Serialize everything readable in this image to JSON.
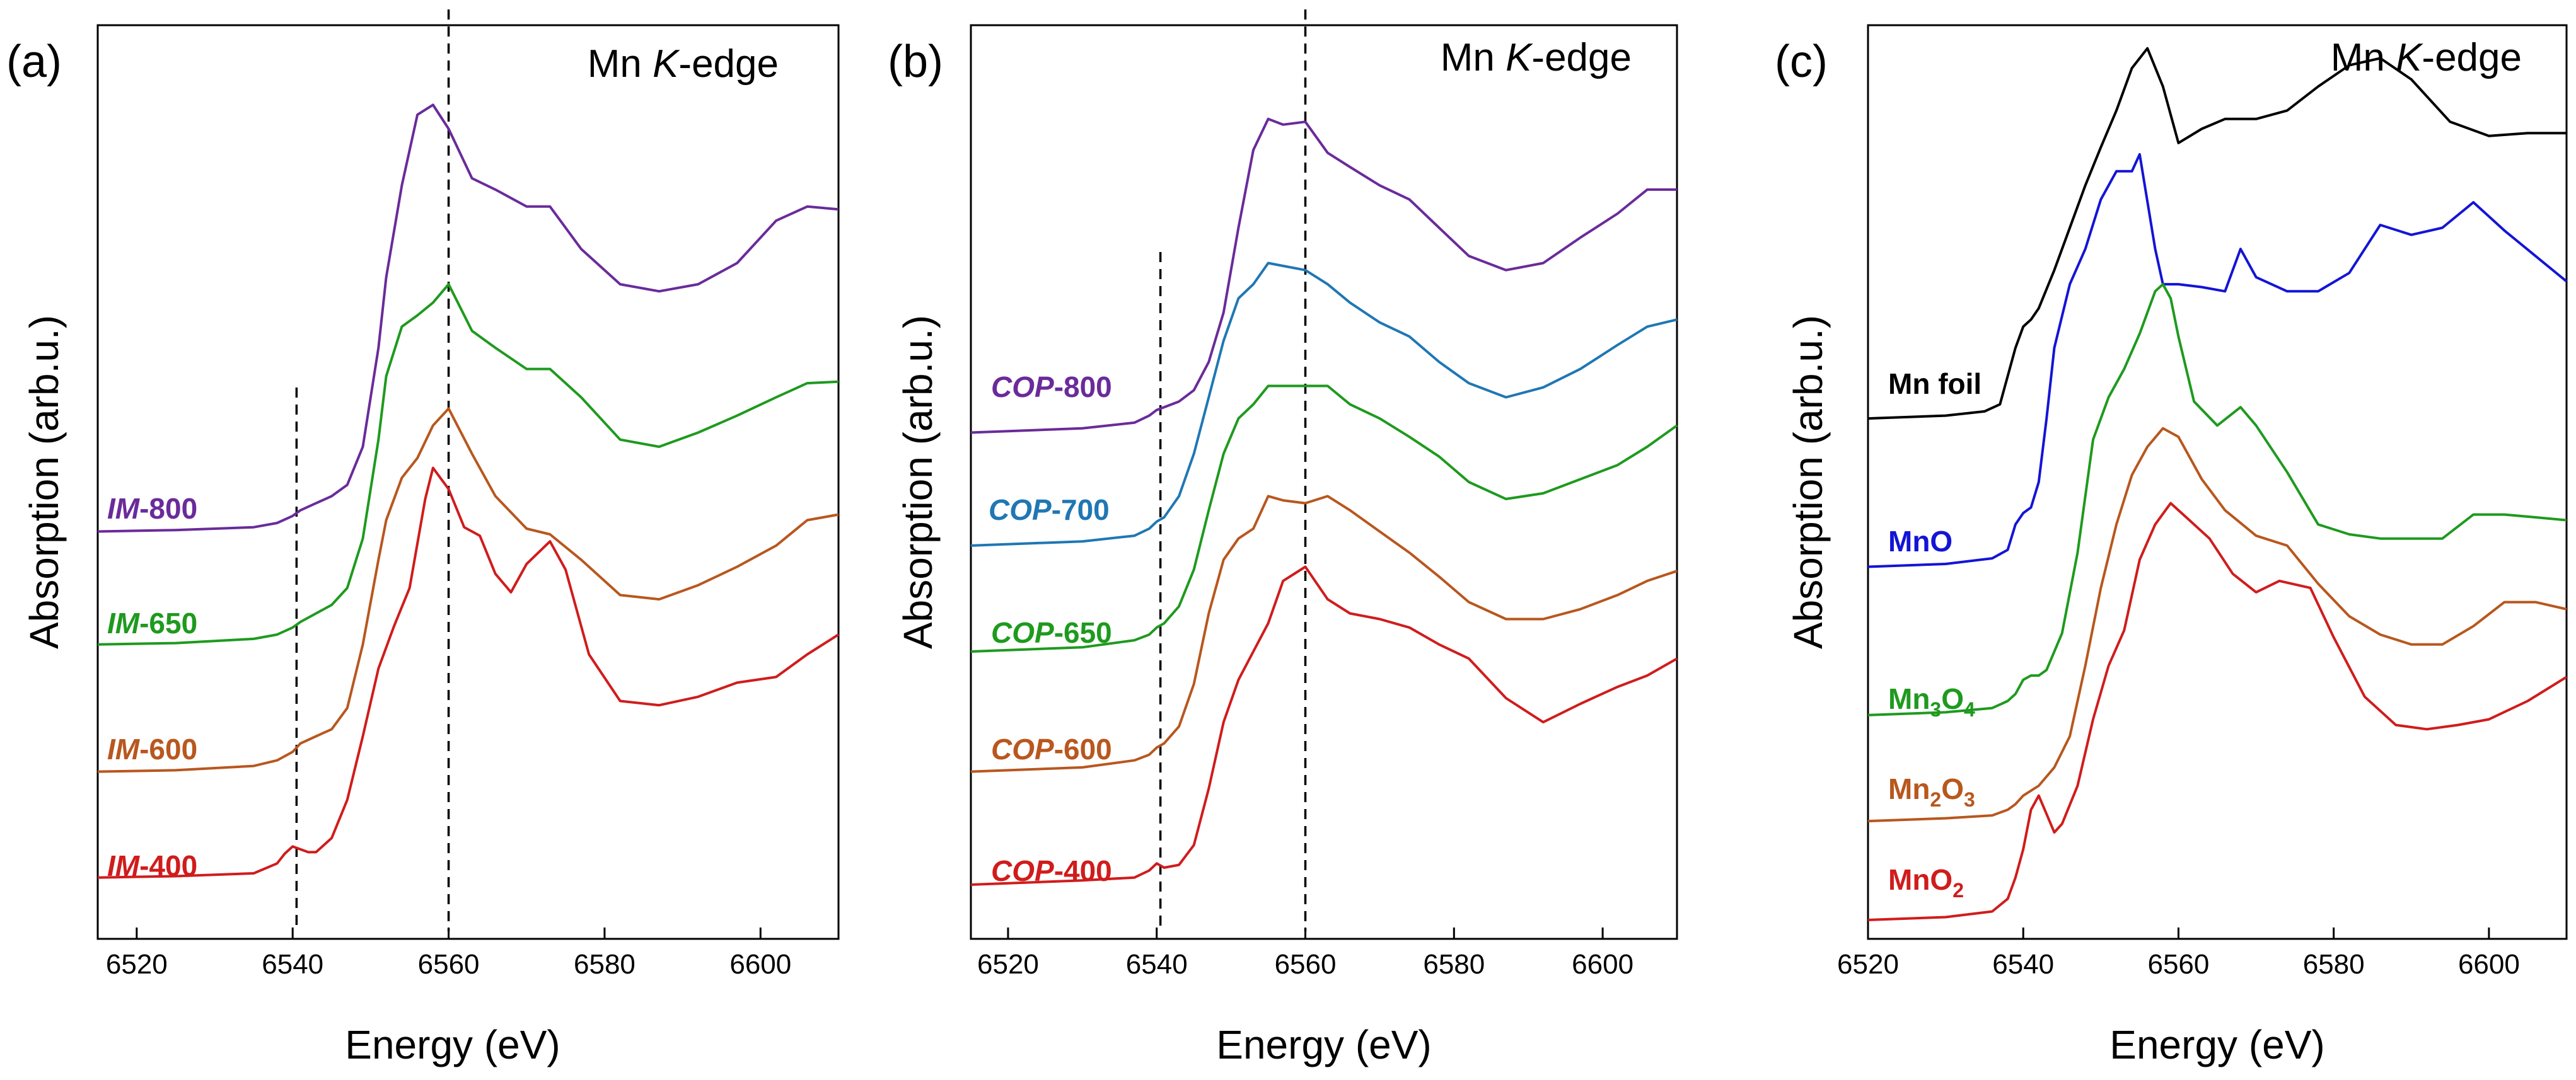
{
  "figure": {
    "x_axis_label": "Energy (eV)",
    "y_axis_label": "Absorption (arb.u.)",
    "edge_label_prefix": "Mn ",
    "edge_label_italic": "K",
    "edge_label_suffix": "-edge"
  },
  "chart_data": [
    {
      "type": "line",
      "panel_label": "(a)",
      "title": "Mn K-edge",
      "xlabel": "Energy (eV)",
      "ylabel": "Absorption (arb.u.)",
      "xlim": [
        6515,
        6610
      ],
      "ylim": [
        0,
        6.2
      ],
      "xticks": [
        6520,
        6540,
        6560,
        6580,
        6600
      ],
      "yticks_visible": false,
      "reference_lines": [
        6540.5,
        6560
      ],
      "series": [
        {
          "name": "IM-800",
          "label_italic": "IM",
          "label_suffix": "-800",
          "color": "#6a2b9a",
          "offset": 2.75,
          "x": [
            6515,
            6525,
            6535,
            6538,
            6540,
            6541,
            6543,
            6545,
            6547,
            6549,
            6551,
            6552,
            6554,
            6556,
            6558,
            6560,
            6563,
            6566,
            6570,
            6573,
            6577,
            6582,
            6587,
            6592,
            6597,
            6602,
            6606,
            6610
          ],
          "y": [
            0,
            0.01,
            0.03,
            0.06,
            0.11,
            0.15,
            0.2,
            0.25,
            0.33,
            0.6,
            1.3,
            1.8,
            2.45,
            2.95,
            3.02,
            2.85,
            2.5,
            2.42,
            2.3,
            2.3,
            2.0,
            1.75,
            1.7,
            1.75,
            1.9,
            2.2,
            2.3,
            2.28
          ]
        },
        {
          "name": "IM-650",
          "label_italic": "IM",
          "label_suffix": "-650",
          "color": "#1e9a1e",
          "offset": 1.95,
          "x": [
            6515,
            6525,
            6535,
            6538,
            6540,
            6541,
            6543,
            6545,
            6547,
            6549,
            6551,
            6552,
            6554,
            6556,
            6558,
            6560,
            6563,
            6566,
            6570,
            6573,
            6577,
            6582,
            6587,
            6592,
            6597,
            6602,
            6606,
            6610
          ],
          "y": [
            0,
            0.01,
            0.04,
            0.07,
            0.12,
            0.16,
            0.22,
            0.28,
            0.4,
            0.75,
            1.45,
            1.9,
            2.25,
            2.33,
            2.42,
            2.55,
            2.22,
            2.1,
            1.95,
            1.95,
            1.75,
            1.45,
            1.4,
            1.5,
            1.62,
            1.75,
            1.85,
            1.86
          ]
        },
        {
          "name": "IM-600",
          "label_italic": "IM",
          "label_suffix": "-600",
          "color": "#b8571e",
          "offset": 1.05,
          "x": [
            6515,
            6525,
            6535,
            6538,
            6540,
            6541,
            6543,
            6545,
            6547,
            6549,
            6551,
            6552,
            6554,
            6556,
            6558,
            6560,
            6563,
            6566,
            6570,
            6573,
            6577,
            6582,
            6587,
            6592,
            6597,
            6602,
            6606,
            6610
          ],
          "y": [
            0,
            0.01,
            0.04,
            0.08,
            0.14,
            0.2,
            0.25,
            0.3,
            0.45,
            0.9,
            1.5,
            1.78,
            2.08,
            2.22,
            2.45,
            2.57,
            2.25,
            1.95,
            1.72,
            1.68,
            1.5,
            1.25,
            1.22,
            1.32,
            1.45,
            1.6,
            1.78,
            1.82
          ]
        },
        {
          "name": "IM-400",
          "label_italic": "IM",
          "label_suffix": "-400",
          "color": "#d01c1c",
          "offset": 0.3,
          "x": [
            6515,
            6525,
            6535,
            6538,
            6539,
            6540,
            6541,
            6542,
            6543,
            6545,
            6547,
            6549,
            6551,
            6553,
            6555,
            6557,
            6558,
            6560,
            6562,
            6564,
            6566,
            6568,
            6570,
            6573,
            6575,
            6578,
            6582,
            6587,
            6592,
            6597,
            6602,
            6606,
            6610
          ],
          "y": [
            0,
            0.01,
            0.03,
            0.1,
            0.17,
            0.22,
            0.2,
            0.18,
            0.18,
            0.28,
            0.55,
            1.0,
            1.48,
            1.78,
            2.05,
            2.68,
            2.9,
            2.75,
            2.48,
            2.42,
            2.15,
            2.02,
            2.22,
            2.38,
            2.18,
            1.58,
            1.25,
            1.22,
            1.28,
            1.38,
            1.42,
            1.58,
            1.72
          ]
        }
      ]
    },
    {
      "type": "line",
      "panel_label": "(b)",
      "title": "Mn K-edge",
      "xlabel": "Energy (eV)",
      "ylabel": "Absorption (arb.u.)",
      "xlim": [
        6515,
        6610
      ],
      "ylim": [
        0,
        6.2
      ],
      "xticks": [
        6520,
        6540,
        6560,
        6580,
        6600
      ],
      "yticks_visible": false,
      "reference_lines": [
        6540.5,
        6560
      ],
      "series": [
        {
          "name": "COP-800",
          "label_italic": "COP",
          "label_suffix": "-800",
          "color": "#6a2b9a",
          "offset": 3.45,
          "x": [
            6515,
            6530,
            6537,
            6539,
            6540,
            6541,
            6543,
            6545,
            6547,
            6549,
            6551,
            6553,
            6555,
            6557,
            6560,
            6563,
            6566,
            6570,
            6574,
            6578,
            6582,
            6587,
            6592,
            6597,
            6602,
            6606,
            6610
          ],
          "y": [
            0,
            0.03,
            0.07,
            0.12,
            0.16,
            0.18,
            0.22,
            0.3,
            0.5,
            0.85,
            1.45,
            2.0,
            2.22,
            2.18,
            2.2,
            1.98,
            1.88,
            1.75,
            1.65,
            1.45,
            1.25,
            1.15,
            1.2,
            1.38,
            1.55,
            1.72,
            1.72
          ]
        },
        {
          "name": "COP-700",
          "label_italic": "COP",
          "label_suffix": "-700",
          "color": "#1f77b4",
          "offset": 2.65,
          "x": [
            6515,
            6530,
            6537,
            6539,
            6540,
            6541,
            6543,
            6545,
            6547,
            6549,
            6551,
            6553,
            6555,
            6557,
            6560,
            6563,
            6566,
            6570,
            6574,
            6578,
            6582,
            6587,
            6592,
            6597,
            6602,
            6606,
            6610
          ],
          "y": [
            0,
            0.03,
            0.07,
            0.12,
            0.17,
            0.2,
            0.35,
            0.65,
            1.05,
            1.45,
            1.75,
            1.85,
            2.0,
            1.98,
            1.95,
            1.85,
            1.72,
            1.58,
            1.48,
            1.3,
            1.15,
            1.05,
            1.12,
            1.25,
            1.42,
            1.55,
            1.6
          ]
        },
        {
          "name": "COP-650",
          "label_italic": "COP",
          "label_suffix": "-650",
          "color": "#1e9a1e",
          "offset": 1.9,
          "x": [
            6515,
            6530,
            6537,
            6539,
            6540,
            6541,
            6543,
            6545,
            6547,
            6549,
            6551,
            6553,
            6555,
            6557,
            6560,
            6563,
            6566,
            6570,
            6574,
            6578,
            6582,
            6587,
            6592,
            6597,
            6602,
            6606,
            6610
          ],
          "y": [
            0,
            0.03,
            0.08,
            0.12,
            0.17,
            0.2,
            0.32,
            0.58,
            1.0,
            1.4,
            1.65,
            1.75,
            1.88,
            1.88,
            1.88,
            1.88,
            1.75,
            1.65,
            1.52,
            1.38,
            1.2,
            1.08,
            1.12,
            1.22,
            1.32,
            1.45,
            1.6
          ]
        },
        {
          "name": "COP-600",
          "label_italic": "COP",
          "label_suffix": "-600",
          "color": "#b8571e",
          "offset": 1.05,
          "x": [
            6515,
            6530,
            6537,
            6539,
            6540,
            6541,
            6543,
            6545,
            6547,
            6549,
            6551,
            6553,
            6555,
            6557,
            6560,
            6563,
            6566,
            6570,
            6574,
            6578,
            6582,
            6587,
            6592,
            6597,
            6602,
            6606,
            6610
          ],
          "y": [
            0,
            0.03,
            0.08,
            0.12,
            0.17,
            0.2,
            0.32,
            0.62,
            1.12,
            1.5,
            1.65,
            1.72,
            1.95,
            1.92,
            1.9,
            1.95,
            1.85,
            1.7,
            1.55,
            1.38,
            1.2,
            1.08,
            1.08,
            1.15,
            1.25,
            1.35,
            1.42
          ]
        },
        {
          "name": "COP-400",
          "label_italic": "COP",
          "label_suffix": "-400",
          "color": "#d01c1c",
          "offset": 0.25,
          "x": [
            6515,
            6530,
            6537,
            6539,
            6540,
            6541,
            6543,
            6545,
            6547,
            6549,
            6551,
            6553,
            6555,
            6557,
            6560,
            6563,
            6566,
            6570,
            6574,
            6578,
            6582,
            6587,
            6592,
            6597,
            6602,
            6606,
            6610
          ],
          "y": [
            0,
            0.03,
            0.05,
            0.1,
            0.15,
            0.12,
            0.14,
            0.28,
            0.68,
            1.15,
            1.45,
            1.65,
            1.85,
            2.15,
            2.25,
            2.02,
            1.92,
            1.88,
            1.82,
            1.7,
            1.6,
            1.32,
            1.15,
            1.28,
            1.4,
            1.48,
            1.6
          ]
        }
      ]
    },
    {
      "type": "line",
      "panel_label": "(c)",
      "title": "Mn K-edge",
      "xlabel": "Energy (eV)",
      "ylabel": "Absorption (arb.u.)",
      "xlim": [
        6520,
        6610
      ],
      "ylim": [
        0,
        6.2
      ],
      "xticks": [
        6520,
        6540,
        6560,
        6580,
        6600
      ],
      "yticks_visible": false,
      "reference_lines": [],
      "series": [
        {
          "name": "Mn foil",
          "label_base": "Mn foil",
          "subscripts": [],
          "color": "#000000",
          "offset": 3.55,
          "x": [
            6520,
            6530,
            6535,
            6537,
            6538,
            6539,
            6540,
            6541,
            6542,
            6544,
            6546,
            6548,
            6550,
            6552,
            6554,
            6556,
            6558,
            6560,
            6563,
            6566,
            6570,
            6574,
            6578,
            6582,
            6586,
            6590,
            6595,
            6600,
            6605,
            6610
          ],
          "y": [
            0,
            0.02,
            0.05,
            0.1,
            0.3,
            0.5,
            0.65,
            0.7,
            0.78,
            1.05,
            1.35,
            1.65,
            1.92,
            2.18,
            2.48,
            2.62,
            2.35,
            1.95,
            2.05,
            2.12,
            2.12,
            2.18,
            2.35,
            2.5,
            2.55,
            2.4,
            2.1,
            2.0,
            2.02,
            2.02
          ]
        },
        {
          "name": "MnO",
          "label_base": "MnO",
          "subscripts": [],
          "color": "#1414d6",
          "offset": 2.5,
          "x": [
            6520,
            6530,
            6536,
            6538,
            6539,
            6540,
            6541,
            6542,
            6543,
            6544,
            6546,
            6548,
            6550,
            6552,
            6554,
            6555,
            6557,
            6558,
            6560,
            6563,
            6566,
            6568,
            6570,
            6574,
            6578,
            6582,
            6586,
            6590,
            6594,
            6598,
            6602,
            6606,
            6610
          ],
          "y": [
            0,
            0.02,
            0.06,
            0.12,
            0.3,
            0.38,
            0.42,
            0.6,
            1.05,
            1.55,
            2.0,
            2.25,
            2.6,
            2.8,
            2.8,
            2.92,
            2.25,
            2.0,
            2.0,
            1.98,
            1.95,
            2.25,
            2.05,
            1.95,
            1.95,
            2.08,
            2.42,
            2.35,
            2.4,
            2.58,
            2.38,
            2.2,
            2.02
          ]
        },
        {
          "name": "Mn3O4",
          "label_base": "Mn",
          "subscripts": [
            "3",
            "O",
            "4"
          ],
          "color": "#1e9a1e",
          "offset": 1.45,
          "x": [
            6520,
            6530,
            6536,
            6538,
            6539,
            6540,
            6541,
            6542,
            6543,
            6545,
            6547,
            6549,
            6551,
            6553,
            6555,
            6557,
            6558,
            6559,
            6560,
            6562,
            6565,
            6568,
            6570,
            6574,
            6578,
            6582,
            6586,
            6590,
            6594,
            6598,
            6602,
            6606,
            6610
          ],
          "y": [
            0,
            0.02,
            0.05,
            0.1,
            0.15,
            0.25,
            0.28,
            0.28,
            0.32,
            0.58,
            1.15,
            1.95,
            2.25,
            2.45,
            2.7,
            3.0,
            3.05,
            2.95,
            2.68,
            2.22,
            2.05,
            2.18,
            2.05,
            1.72,
            1.35,
            1.28,
            1.25,
            1.25,
            1.25,
            1.42,
            1.42,
            1.4,
            1.38
          ]
        },
        {
          "name": "Mn2O3",
          "label_base": "Mn",
          "subscripts": [
            "2",
            "O",
            "3"
          ],
          "color": "#b8571e",
          "offset": 0.7,
          "x": [
            6520,
            6530,
            6536,
            6538,
            6539,
            6540,
            6542,
            6544,
            6546,
            6548,
            6550,
            6552,
            6554,
            6556,
            6558,
            6560,
            6563,
            6566,
            6570,
            6574,
            6578,
            6582,
            6586,
            6590,
            6594,
            6598,
            6602,
            6606,
            6610
          ],
          "y": [
            0,
            0.02,
            0.04,
            0.08,
            0.12,
            0.18,
            0.25,
            0.38,
            0.6,
            1.1,
            1.65,
            2.1,
            2.45,
            2.65,
            2.78,
            2.72,
            2.42,
            2.2,
            2.02,
            1.95,
            1.68,
            1.45,
            1.32,
            1.25,
            1.25,
            1.38,
            1.55,
            1.55,
            1.5
          ]
        },
        {
          "name": "MnO2",
          "label_base": "MnO",
          "subscripts": [
            "2"
          ],
          "color": "#d01c1c",
          "offset": 0.0,
          "x": [
            6520,
            6530,
            6536,
            6538,
            6539,
            6540,
            6541,
            6542,
            6543,
            6544,
            6545,
            6547,
            6549,
            6551,
            6553,
            6555,
            6557,
            6559,
            6561,
            6564,
            6567,
            6570,
            6573,
            6577,
            6580,
            6584,
            6588,
            6592,
            6596,
            6600,
            6605,
            6610
          ],
          "y": [
            0,
            0.02,
            0.06,
            0.15,
            0.3,
            0.5,
            0.78,
            0.88,
            0.75,
            0.62,
            0.68,
            0.95,
            1.42,
            1.8,
            2.05,
            2.55,
            2.8,
            2.95,
            2.85,
            2.7,
            2.45,
            2.32,
            2.4,
            2.35,
            2.0,
            1.58,
            1.38,
            1.35,
            1.38,
            1.42,
            1.55,
            1.72
          ]
        }
      ]
    }
  ]
}
